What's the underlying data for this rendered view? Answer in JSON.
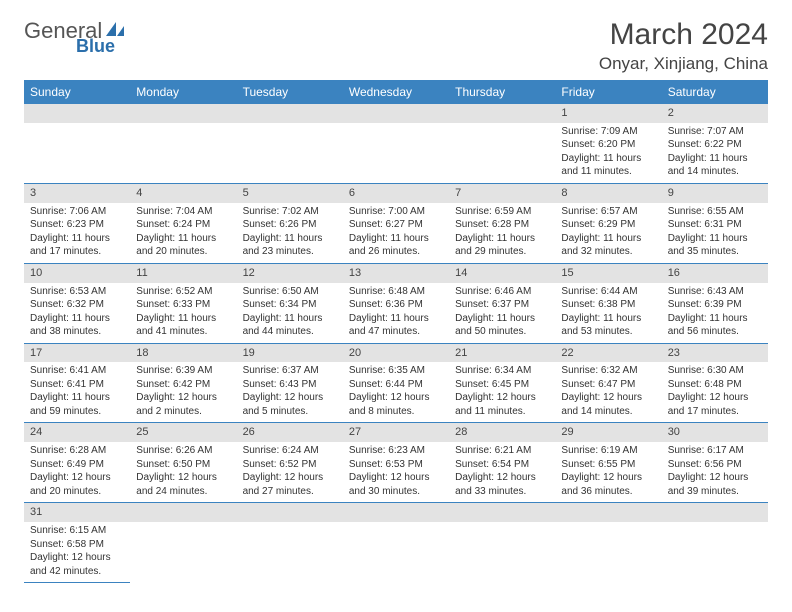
{
  "logo": {
    "general": "General",
    "blue": "Blue"
  },
  "title": "March 2024",
  "location": "Onyar, Xinjiang, China",
  "weekdays": [
    "Sunday",
    "Monday",
    "Tuesday",
    "Wednesday",
    "Thursday",
    "Friday",
    "Saturday"
  ],
  "colors": {
    "header_bg": "#3b83c0",
    "header_fg": "#ffffff",
    "daynum_bg": "#e3e3e3",
    "rule": "#3b83c0",
    "logo_blue": "#2b6fab"
  },
  "weeks": [
    [
      null,
      null,
      null,
      null,
      null,
      {
        "n": "1",
        "sunrise": "Sunrise: 7:09 AM",
        "sunset": "Sunset: 6:20 PM",
        "day1": "Daylight: 11 hours",
        "day2": "and 11 minutes."
      },
      {
        "n": "2",
        "sunrise": "Sunrise: 7:07 AM",
        "sunset": "Sunset: 6:22 PM",
        "day1": "Daylight: 11 hours",
        "day2": "and 14 minutes."
      }
    ],
    [
      {
        "n": "3",
        "sunrise": "Sunrise: 7:06 AM",
        "sunset": "Sunset: 6:23 PM",
        "day1": "Daylight: 11 hours",
        "day2": "and 17 minutes."
      },
      {
        "n": "4",
        "sunrise": "Sunrise: 7:04 AM",
        "sunset": "Sunset: 6:24 PM",
        "day1": "Daylight: 11 hours",
        "day2": "and 20 minutes."
      },
      {
        "n": "5",
        "sunrise": "Sunrise: 7:02 AM",
        "sunset": "Sunset: 6:26 PM",
        "day1": "Daylight: 11 hours",
        "day2": "and 23 minutes."
      },
      {
        "n": "6",
        "sunrise": "Sunrise: 7:00 AM",
        "sunset": "Sunset: 6:27 PM",
        "day1": "Daylight: 11 hours",
        "day2": "and 26 minutes."
      },
      {
        "n": "7",
        "sunrise": "Sunrise: 6:59 AM",
        "sunset": "Sunset: 6:28 PM",
        "day1": "Daylight: 11 hours",
        "day2": "and 29 minutes."
      },
      {
        "n": "8",
        "sunrise": "Sunrise: 6:57 AM",
        "sunset": "Sunset: 6:29 PM",
        "day1": "Daylight: 11 hours",
        "day2": "and 32 minutes."
      },
      {
        "n": "9",
        "sunrise": "Sunrise: 6:55 AM",
        "sunset": "Sunset: 6:31 PM",
        "day1": "Daylight: 11 hours",
        "day2": "and 35 minutes."
      }
    ],
    [
      {
        "n": "10",
        "sunrise": "Sunrise: 6:53 AM",
        "sunset": "Sunset: 6:32 PM",
        "day1": "Daylight: 11 hours",
        "day2": "and 38 minutes."
      },
      {
        "n": "11",
        "sunrise": "Sunrise: 6:52 AM",
        "sunset": "Sunset: 6:33 PM",
        "day1": "Daylight: 11 hours",
        "day2": "and 41 minutes."
      },
      {
        "n": "12",
        "sunrise": "Sunrise: 6:50 AM",
        "sunset": "Sunset: 6:34 PM",
        "day1": "Daylight: 11 hours",
        "day2": "and 44 minutes."
      },
      {
        "n": "13",
        "sunrise": "Sunrise: 6:48 AM",
        "sunset": "Sunset: 6:36 PM",
        "day1": "Daylight: 11 hours",
        "day2": "and 47 minutes."
      },
      {
        "n": "14",
        "sunrise": "Sunrise: 6:46 AM",
        "sunset": "Sunset: 6:37 PM",
        "day1": "Daylight: 11 hours",
        "day2": "and 50 minutes."
      },
      {
        "n": "15",
        "sunrise": "Sunrise: 6:44 AM",
        "sunset": "Sunset: 6:38 PM",
        "day1": "Daylight: 11 hours",
        "day2": "and 53 minutes."
      },
      {
        "n": "16",
        "sunrise": "Sunrise: 6:43 AM",
        "sunset": "Sunset: 6:39 PM",
        "day1": "Daylight: 11 hours",
        "day2": "and 56 minutes."
      }
    ],
    [
      {
        "n": "17",
        "sunrise": "Sunrise: 6:41 AM",
        "sunset": "Sunset: 6:41 PM",
        "day1": "Daylight: 11 hours",
        "day2": "and 59 minutes."
      },
      {
        "n": "18",
        "sunrise": "Sunrise: 6:39 AM",
        "sunset": "Sunset: 6:42 PM",
        "day1": "Daylight: 12 hours",
        "day2": "and 2 minutes."
      },
      {
        "n": "19",
        "sunrise": "Sunrise: 6:37 AM",
        "sunset": "Sunset: 6:43 PM",
        "day1": "Daylight: 12 hours",
        "day2": "and 5 minutes."
      },
      {
        "n": "20",
        "sunrise": "Sunrise: 6:35 AM",
        "sunset": "Sunset: 6:44 PM",
        "day1": "Daylight: 12 hours",
        "day2": "and 8 minutes."
      },
      {
        "n": "21",
        "sunrise": "Sunrise: 6:34 AM",
        "sunset": "Sunset: 6:45 PM",
        "day1": "Daylight: 12 hours",
        "day2": "and 11 minutes."
      },
      {
        "n": "22",
        "sunrise": "Sunrise: 6:32 AM",
        "sunset": "Sunset: 6:47 PM",
        "day1": "Daylight: 12 hours",
        "day2": "and 14 minutes."
      },
      {
        "n": "23",
        "sunrise": "Sunrise: 6:30 AM",
        "sunset": "Sunset: 6:48 PM",
        "day1": "Daylight: 12 hours",
        "day2": "and 17 minutes."
      }
    ],
    [
      {
        "n": "24",
        "sunrise": "Sunrise: 6:28 AM",
        "sunset": "Sunset: 6:49 PM",
        "day1": "Daylight: 12 hours",
        "day2": "and 20 minutes."
      },
      {
        "n": "25",
        "sunrise": "Sunrise: 6:26 AM",
        "sunset": "Sunset: 6:50 PM",
        "day1": "Daylight: 12 hours",
        "day2": "and 24 minutes."
      },
      {
        "n": "26",
        "sunrise": "Sunrise: 6:24 AM",
        "sunset": "Sunset: 6:52 PM",
        "day1": "Daylight: 12 hours",
        "day2": "and 27 minutes."
      },
      {
        "n": "27",
        "sunrise": "Sunrise: 6:23 AM",
        "sunset": "Sunset: 6:53 PM",
        "day1": "Daylight: 12 hours",
        "day2": "and 30 minutes."
      },
      {
        "n": "28",
        "sunrise": "Sunrise: 6:21 AM",
        "sunset": "Sunset: 6:54 PM",
        "day1": "Daylight: 12 hours",
        "day2": "and 33 minutes."
      },
      {
        "n": "29",
        "sunrise": "Sunrise: 6:19 AM",
        "sunset": "Sunset: 6:55 PM",
        "day1": "Daylight: 12 hours",
        "day2": "and 36 minutes."
      },
      {
        "n": "30",
        "sunrise": "Sunrise: 6:17 AM",
        "sunset": "Sunset: 6:56 PM",
        "day1": "Daylight: 12 hours",
        "day2": "and 39 minutes."
      }
    ],
    [
      {
        "n": "31",
        "sunrise": "Sunrise: 6:15 AM",
        "sunset": "Sunset: 6:58 PM",
        "day1": "Daylight: 12 hours",
        "day2": "and 42 minutes."
      },
      null,
      null,
      null,
      null,
      null,
      null
    ]
  ]
}
